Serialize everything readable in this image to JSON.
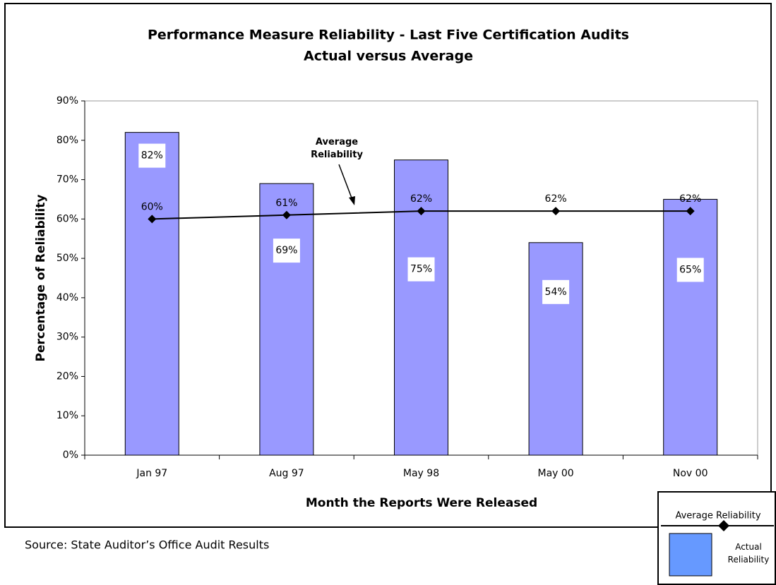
{
  "chart_data": {
    "type": "combo",
    "title": "Performance Measure Reliability - Last Five Certification Audits",
    "subtitle": "Actual versus Average",
    "x_label": "Month the Reports Were Released",
    "y_label": "Percentage of Reliability",
    "categories": [
      "Jan 97",
      "Aug 97",
      "May 98",
      "May 00",
      "Nov 00"
    ],
    "series": [
      {
        "name": "Actual Reliability",
        "type": "bar",
        "color": "#9999ff",
        "values": [
          82,
          69,
          75,
          54,
          65
        ],
        "value_labels": [
          "82%",
          "69%",
          "75%",
          "54%",
          "65%"
        ]
      },
      {
        "name": "Average Reliability",
        "type": "line",
        "color": "#000000",
        "values": [
          60,
          61,
          62,
          62,
          62
        ],
        "value_labels": [
          "60%",
          "61%",
          "62%",
          "62%",
          "62%"
        ]
      }
    ],
    "ylim": [
      0,
      90
    ],
    "yticks": [
      {
        "value": 0,
        "label": "0%"
      },
      {
        "value": 10,
        "label": "10%"
      },
      {
        "value": 20,
        "label": "20%"
      },
      {
        "value": 30,
        "label": "30%"
      },
      {
        "value": 40,
        "label": "40%"
      },
      {
        "value": 50,
        "label": "50%"
      },
      {
        "value": 60,
        "label": "60%"
      },
      {
        "value": 70,
        "label": "70%"
      },
      {
        "value": 80,
        "label": "80%"
      },
      {
        "value": 90,
        "label": "90%"
      }
    ],
    "annotation": "Average Reliability",
    "source": "Source: State Auditor’s Office Audit Results",
    "legend": "bottom-right"
  }
}
